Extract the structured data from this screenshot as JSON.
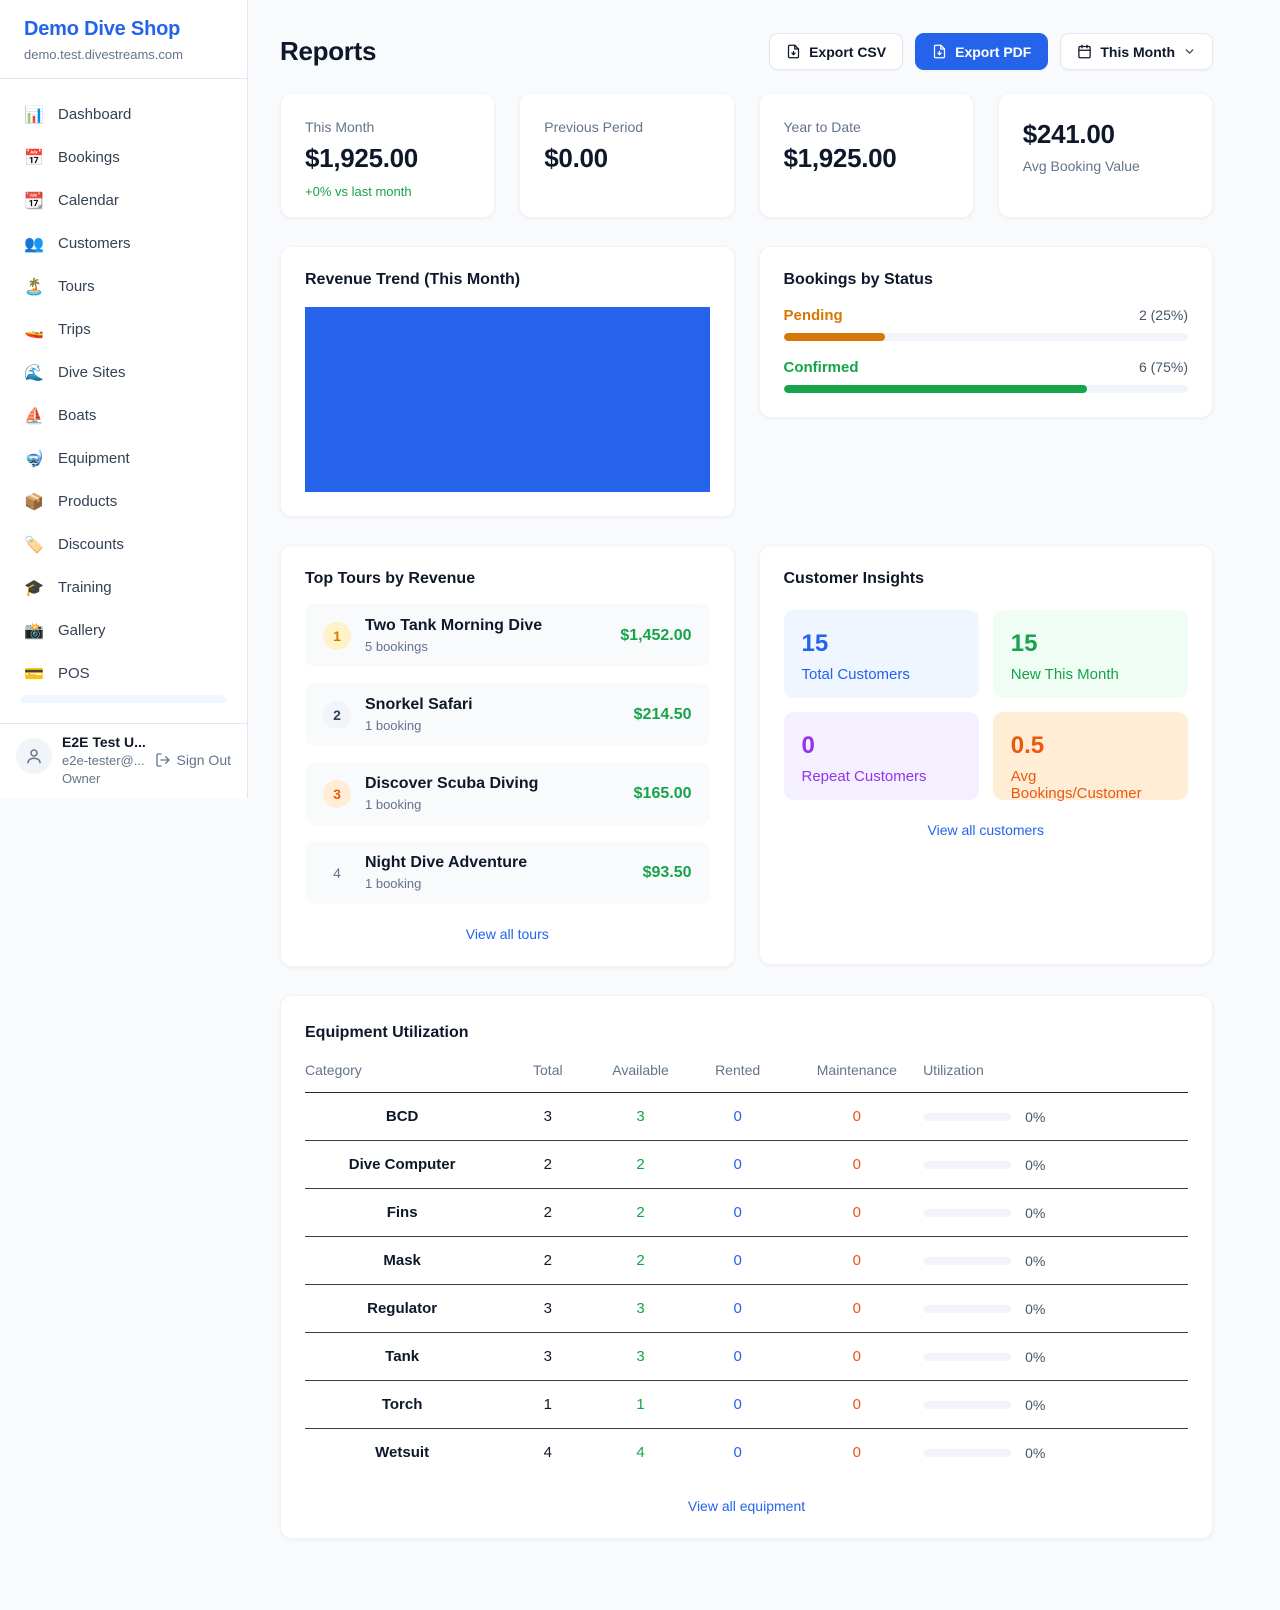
{
  "colors": {
    "accent_blue": "#2563eb",
    "green": "#16a34a",
    "amber": "#d97706",
    "deep_orange": "#ea580c",
    "purple": "#9333ea",
    "chart_fill": "#2563eb"
  },
  "sidebar": {
    "shop_name": "Demo Dive Shop",
    "shop_domain": "demo.test.divestreams.com",
    "items": [
      {
        "label": "Dashboard",
        "icon": "bar-chart-icon",
        "glyph": "📊"
      },
      {
        "label": "Bookings",
        "icon": "calendar-icon",
        "glyph": "📅"
      },
      {
        "label": "Calendar",
        "icon": "tear-off-calendar-icon",
        "glyph": "📆"
      },
      {
        "label": "Customers",
        "icon": "people-icon",
        "glyph": "👥"
      },
      {
        "label": "Tours",
        "icon": "desert-island-icon",
        "glyph": "🏝️"
      },
      {
        "label": "Trips",
        "icon": "speedboat-icon",
        "glyph": "🚤"
      },
      {
        "label": "Dive Sites",
        "icon": "water-wave-icon",
        "glyph": "🌊"
      },
      {
        "label": "Boats",
        "icon": "sailboat-icon",
        "glyph": "⛵"
      },
      {
        "label": "Equipment",
        "icon": "diving-mask-icon",
        "glyph": "🤿"
      },
      {
        "label": "Products",
        "icon": "package-icon",
        "glyph": "📦"
      },
      {
        "label": "Discounts",
        "icon": "label-tag-icon",
        "glyph": "🏷️"
      },
      {
        "label": "Training",
        "icon": "graduation-cap-icon",
        "glyph": "🎓"
      },
      {
        "label": "Gallery",
        "icon": "camera-flash-icon",
        "glyph": "📸"
      },
      {
        "label": "POS",
        "icon": "credit-card-icon",
        "glyph": "💳"
      }
    ],
    "user": {
      "name": "E2E Test U...",
      "email": "e2e-tester@...",
      "role": "Owner",
      "sign_out_label": "Sign Out"
    }
  },
  "header": {
    "title": "Reports",
    "export_csv_label": "Export CSV",
    "export_pdf_label": "Export PDF",
    "period_label": "This Month"
  },
  "stats": [
    {
      "label": "This Month",
      "value": "$1,925.00",
      "delta": "+0% vs last month"
    },
    {
      "label": "Previous Period",
      "value": "$0.00"
    },
    {
      "label": "Year to Date",
      "value": "$1,925.00"
    },
    {
      "label": "Avg Booking Value",
      "value": "$241.00"
    }
  ],
  "revenue_trend": {
    "title": "Revenue Trend (This Month)"
  },
  "bookings_by_status": {
    "title": "Bookings by Status",
    "rows": [
      {
        "label": "Pending",
        "count_text": "2 (25%)",
        "pct": 25
      },
      {
        "label": "Confirmed",
        "count_text": "6 (75%)",
        "pct": 75
      }
    ]
  },
  "top_tours": {
    "title": "Top Tours by Revenue",
    "view_all_label": "View all tours",
    "rows": [
      {
        "rank": "1",
        "name": "Two Tank Morning Dive",
        "bookings": "5 bookings",
        "revenue": "$1,452.00"
      },
      {
        "rank": "2",
        "name": "Snorkel Safari",
        "bookings": "1 booking",
        "revenue": "$214.50"
      },
      {
        "rank": "3",
        "name": "Discover Scuba Diving",
        "bookings": "1 booking",
        "revenue": "$165.00"
      },
      {
        "rank": "4",
        "name": "Night Dive Adventure",
        "bookings": "1 booking",
        "revenue": "$93.50"
      }
    ]
  },
  "customer_insights": {
    "title": "Customer Insights",
    "view_all_label": "View all customers",
    "tiles": [
      {
        "value": "15",
        "label": "Total Customers"
      },
      {
        "value": "15",
        "label": "New This Month"
      },
      {
        "value": "0",
        "label": "Repeat Customers"
      },
      {
        "value": "0.5",
        "label": "Avg Bookings/Customer"
      }
    ]
  },
  "equipment": {
    "title": "Equipment Utilization",
    "view_all_label": "View all equipment",
    "columns": [
      "Category",
      "Total",
      "Available",
      "Rented",
      "Maintenance",
      "Utilization"
    ],
    "rows": [
      {
        "category": "BCD",
        "total": "3",
        "available": "3",
        "rented": "0",
        "maintenance": "0",
        "utilization_pct": 0,
        "utilization_text": "0%"
      },
      {
        "category": "Dive Computer",
        "total": "2",
        "available": "2",
        "rented": "0",
        "maintenance": "0",
        "utilization_pct": 0,
        "utilization_text": "0%"
      },
      {
        "category": "Fins",
        "total": "2",
        "available": "2",
        "rented": "0",
        "maintenance": "0",
        "utilization_pct": 0,
        "utilization_text": "0%"
      },
      {
        "category": "Mask",
        "total": "2",
        "available": "2",
        "rented": "0",
        "maintenance": "0",
        "utilization_pct": 0,
        "utilization_text": "0%"
      },
      {
        "category": "Regulator",
        "total": "3",
        "available": "3",
        "rented": "0",
        "maintenance": "0",
        "utilization_pct": 0,
        "utilization_text": "0%"
      },
      {
        "category": "Tank",
        "total": "3",
        "available": "3",
        "rented": "0",
        "maintenance": "0",
        "utilization_pct": 0,
        "utilization_text": "0%"
      },
      {
        "category": "Torch",
        "total": "1",
        "available": "1",
        "rented": "0",
        "maintenance": "0",
        "utilization_pct": 0,
        "utilization_text": "0%"
      },
      {
        "category": "Wetsuit",
        "total": "4",
        "available": "4",
        "rented": "0",
        "maintenance": "0",
        "utilization_pct": 0,
        "utilization_text": "0%"
      }
    ]
  }
}
